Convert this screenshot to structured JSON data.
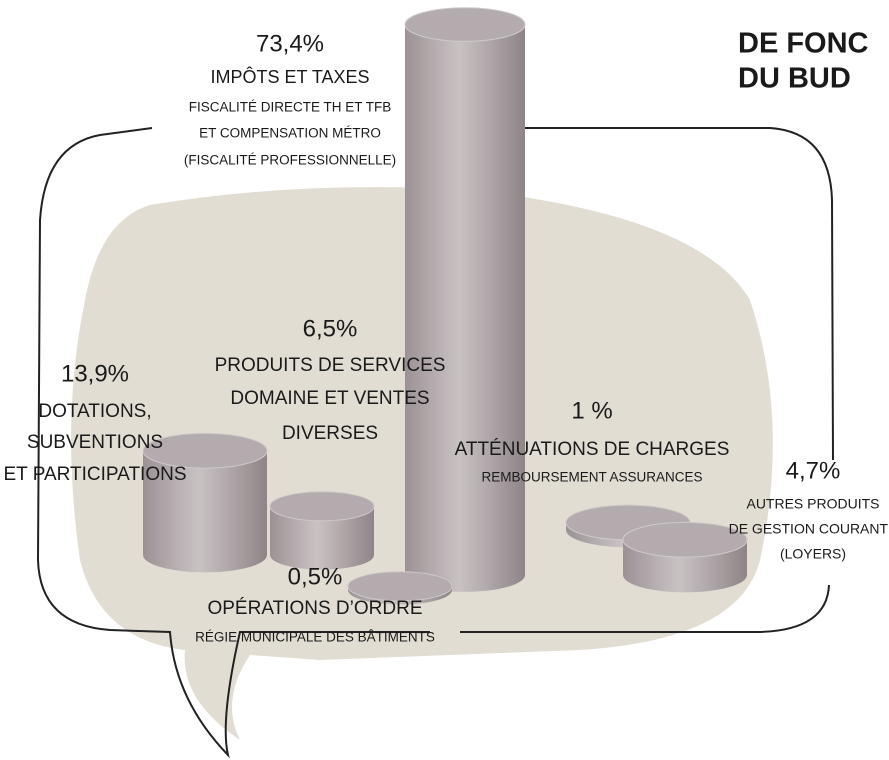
{
  "chart_data": {
    "type": "cylinder",
    "title": [
      "DE FONC",
      "DU BUD"
    ],
    "categories": [
      [
        "IMPÔTS ET TAXES"
      ],
      [
        "DOTATIONS,",
        "SUBVENTIONS",
        "ET PARTICIPATIONS"
      ],
      [
        "PRODUITS DE SERVICES",
        "DOMAINE ET VENTES",
        "DIVERSES"
      ],
      [
        "OPÉRATIONS D’ORDRE"
      ],
      [
        "ATTÉNUATIONS DE CHARGES"
      ],
      [
        "AUTRES PRODUITS",
        "DE GESTION COURANTE",
        "(LOYERS)"
      ]
    ],
    "details": [
      [
        "FISCALITÉ DIRECTE  TH ET TFB",
        "ET COMPENSATION MÉTRO",
        "(FISCALITÉ PROFESSIONNELLE)"
      ],
      null,
      null,
      [
        "RÉGIE MUNICIPALE DES BÂTIMENTS"
      ],
      [
        "REMBOURSEMENT ASSURANCES"
      ],
      null
    ],
    "values": [
      73.4,
      13.9,
      6.5,
      0.5,
      1,
      4.7
    ],
    "value_labels": [
      "73,4%",
      "13,9%",
      "6,5%",
      "0,5%",
      "1 %",
      "4,7%"
    ],
    "color": "#b3abad",
    "label_color": "#7a1f4a",
    "title_color": "#e87722"
  }
}
